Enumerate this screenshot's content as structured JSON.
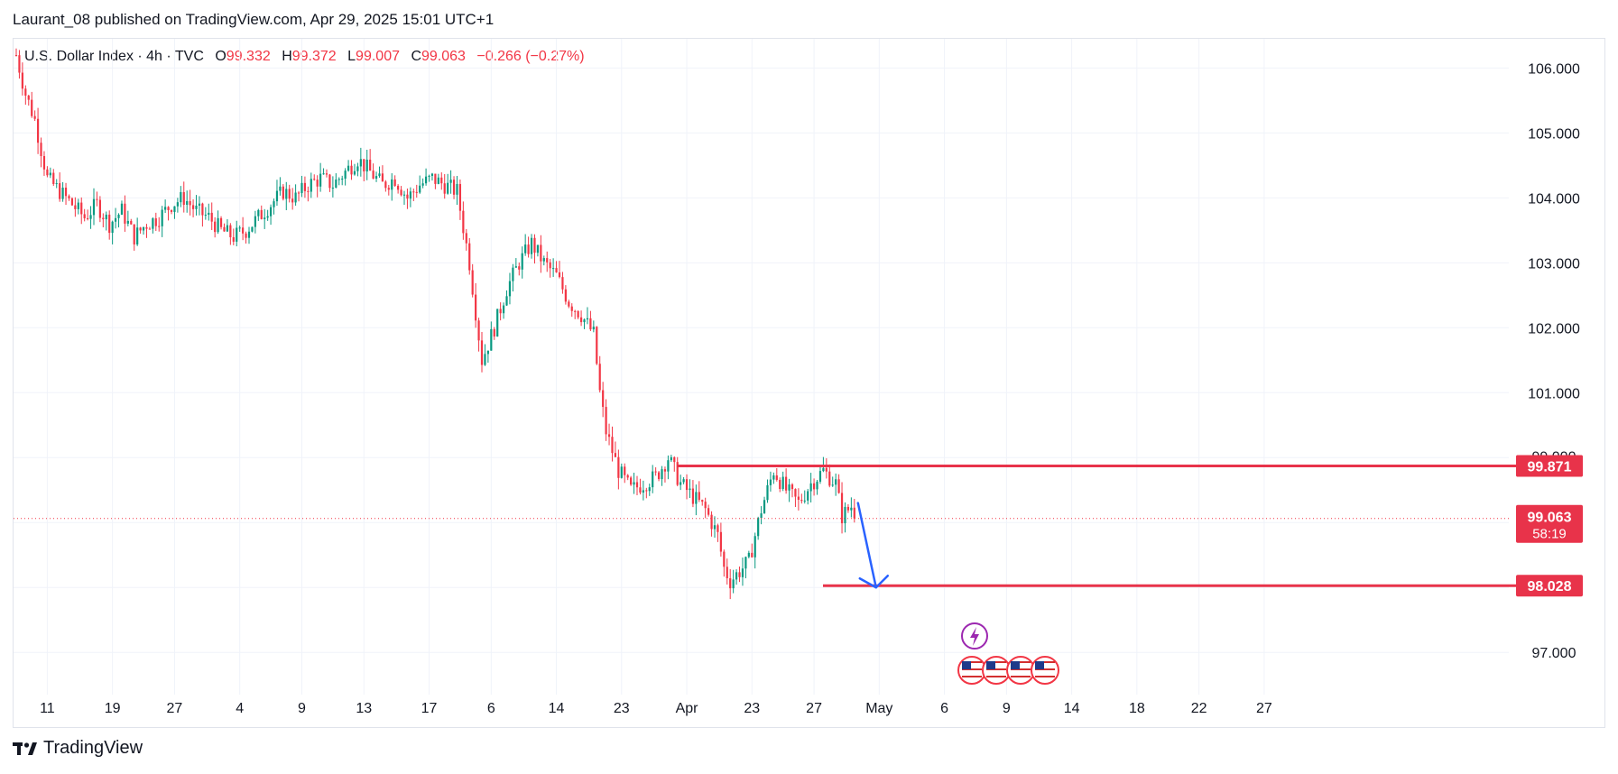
{
  "header": {
    "published": "Laurant_08 published on TradingView.com, Apr 29, 2025 15:01 UTC+1"
  },
  "legend": {
    "symbol": "U.S. Dollar Index · 4h · TVC",
    "open_label": "O",
    "open": "99.332",
    "high_label": "H",
    "high": "99.372",
    "low_label": "L",
    "low": "99.007",
    "close_label": "C",
    "close": "99.063",
    "change": "−0.266 (−0.27%)"
  },
  "footer": {
    "brand": "TradingView"
  },
  "colors": {
    "up": "#089981",
    "down": "#f23645",
    "level": "#e8334a",
    "arrow": "#2962ff",
    "event": "#9c27b0"
  },
  "chart_data": {
    "type": "candlestick",
    "ylim": [
      96.35,
      106.45
    ],
    "y_ticks": [
      "106.000",
      "105.000",
      "104.000",
      "103.000",
      "102.000",
      "101.000",
      "97.000"
    ],
    "x_ticks": [
      "6",
      "11",
      "14",
      "19",
      "23",
      "27",
      "Apr",
      "4",
      "9",
      "13",
      "17",
      "23",
      "27",
      "May",
      "6",
      "9",
      "14",
      "18",
      "22",
      "27"
    ],
    "levels": [
      {
        "price": 99.871,
        "label": "99.871"
      },
      {
        "price": 98.028,
        "label": "98.028"
      }
    ],
    "last_price": {
      "price": 99.063,
      "label": "99.063",
      "countdown": "58:19"
    },
    "overlapped_tick": "99.000",
    "projection": {
      "from": 99.3,
      "to": 98.0
    },
    "path": [
      [
        0,
        106.2
      ],
      [
        3,
        105.6
      ],
      [
        6,
        105.2
      ],
      [
        10,
        104.3
      ],
      [
        14,
        104.1
      ],
      [
        18,
        103.9
      ],
      [
        22,
        103.7
      ],
      [
        26,
        103.9
      ],
      [
        30,
        103.6
      ],
      [
        34,
        103.8
      ],
      [
        38,
        103.4
      ],
      [
        42,
        103.6
      ],
      [
        46,
        103.7
      ],
      [
        50,
        103.9
      ],
      [
        54,
        104.0
      ],
      [
        58,
        103.8
      ],
      [
        62,
        103.7
      ],
      [
        66,
        103.5
      ],
      [
        70,
        103.4
      ],
      [
        74,
        103.5
      ],
      [
        78,
        103.7
      ],
      [
        82,
        103.9
      ],
      [
        86,
        104.1
      ],
      [
        90,
        104.0
      ],
      [
        94,
        104.2
      ],
      [
        98,
        104.3
      ],
      [
        102,
        104.2
      ],
      [
        106,
        104.4
      ],
      [
        110,
        104.6
      ],
      [
        114,
        104.4
      ],
      [
        118,
        104.2
      ],
      [
        122,
        104.3
      ],
      [
        126,
        104.0
      ],
      [
        130,
        104.2
      ],
      [
        134,
        104.3
      ],
      [
        138,
        104.2
      ],
      [
        142,
        104.1
      ],
      [
        146,
        103.0
      ],
      [
        150,
        101.5
      ],
      [
        154,
        102.0
      ],
      [
        158,
        102.6
      ],
      [
        162,
        103.0
      ],
      [
        166,
        103.3
      ],
      [
        170,
        103.0
      ],
      [
        174,
        102.8
      ],
      [
        178,
        102.4
      ],
      [
        182,
        102.2
      ],
      [
        186,
        101.9
      ],
      [
        188,
        101.0
      ],
      [
        190,
        100.4
      ],
      [
        194,
        99.8
      ],
      [
        198,
        99.5
      ],
      [
        202,
        99.6
      ],
      [
        206,
        99.7
      ],
      [
        210,
        100.0
      ],
      [
        214,
        99.6
      ],
      [
        218,
        99.4
      ],
      [
        222,
        99.2
      ],
      [
        226,
        98.8
      ],
      [
        228,
        98.3
      ],
      [
        230,
        98.1
      ],
      [
        232,
        98.2
      ],
      [
        236,
        98.4
      ],
      [
        240,
        99.2
      ],
      [
        244,
        99.8
      ],
      [
        248,
        99.5
      ],
      [
        252,
        99.3
      ],
      [
        256,
        99.6
      ],
      [
        260,
        99.8
      ],
      [
        264,
        99.6
      ],
      [
        266,
        99.1
      ],
      [
        270,
        99.3
      ]
    ],
    "times": {
      "x0": 18,
      "dx": 3.44,
      "label_bars": {
        "6": 10,
        "11": 31,
        "14": 51,
        "19": 72,
        "23": 92,
        "27": 112,
        "Apr": 133,
        "4": 153,
        "9": 174,
        "13": 195,
        "17": 216,
        "23b": 237,
        "27b": 257,
        "May": 278,
        "6b": 299,
        "9b": 319,
        "14b": 340,
        "18b": 361,
        "22b": 381,
        "27c": 402
      }
    }
  }
}
